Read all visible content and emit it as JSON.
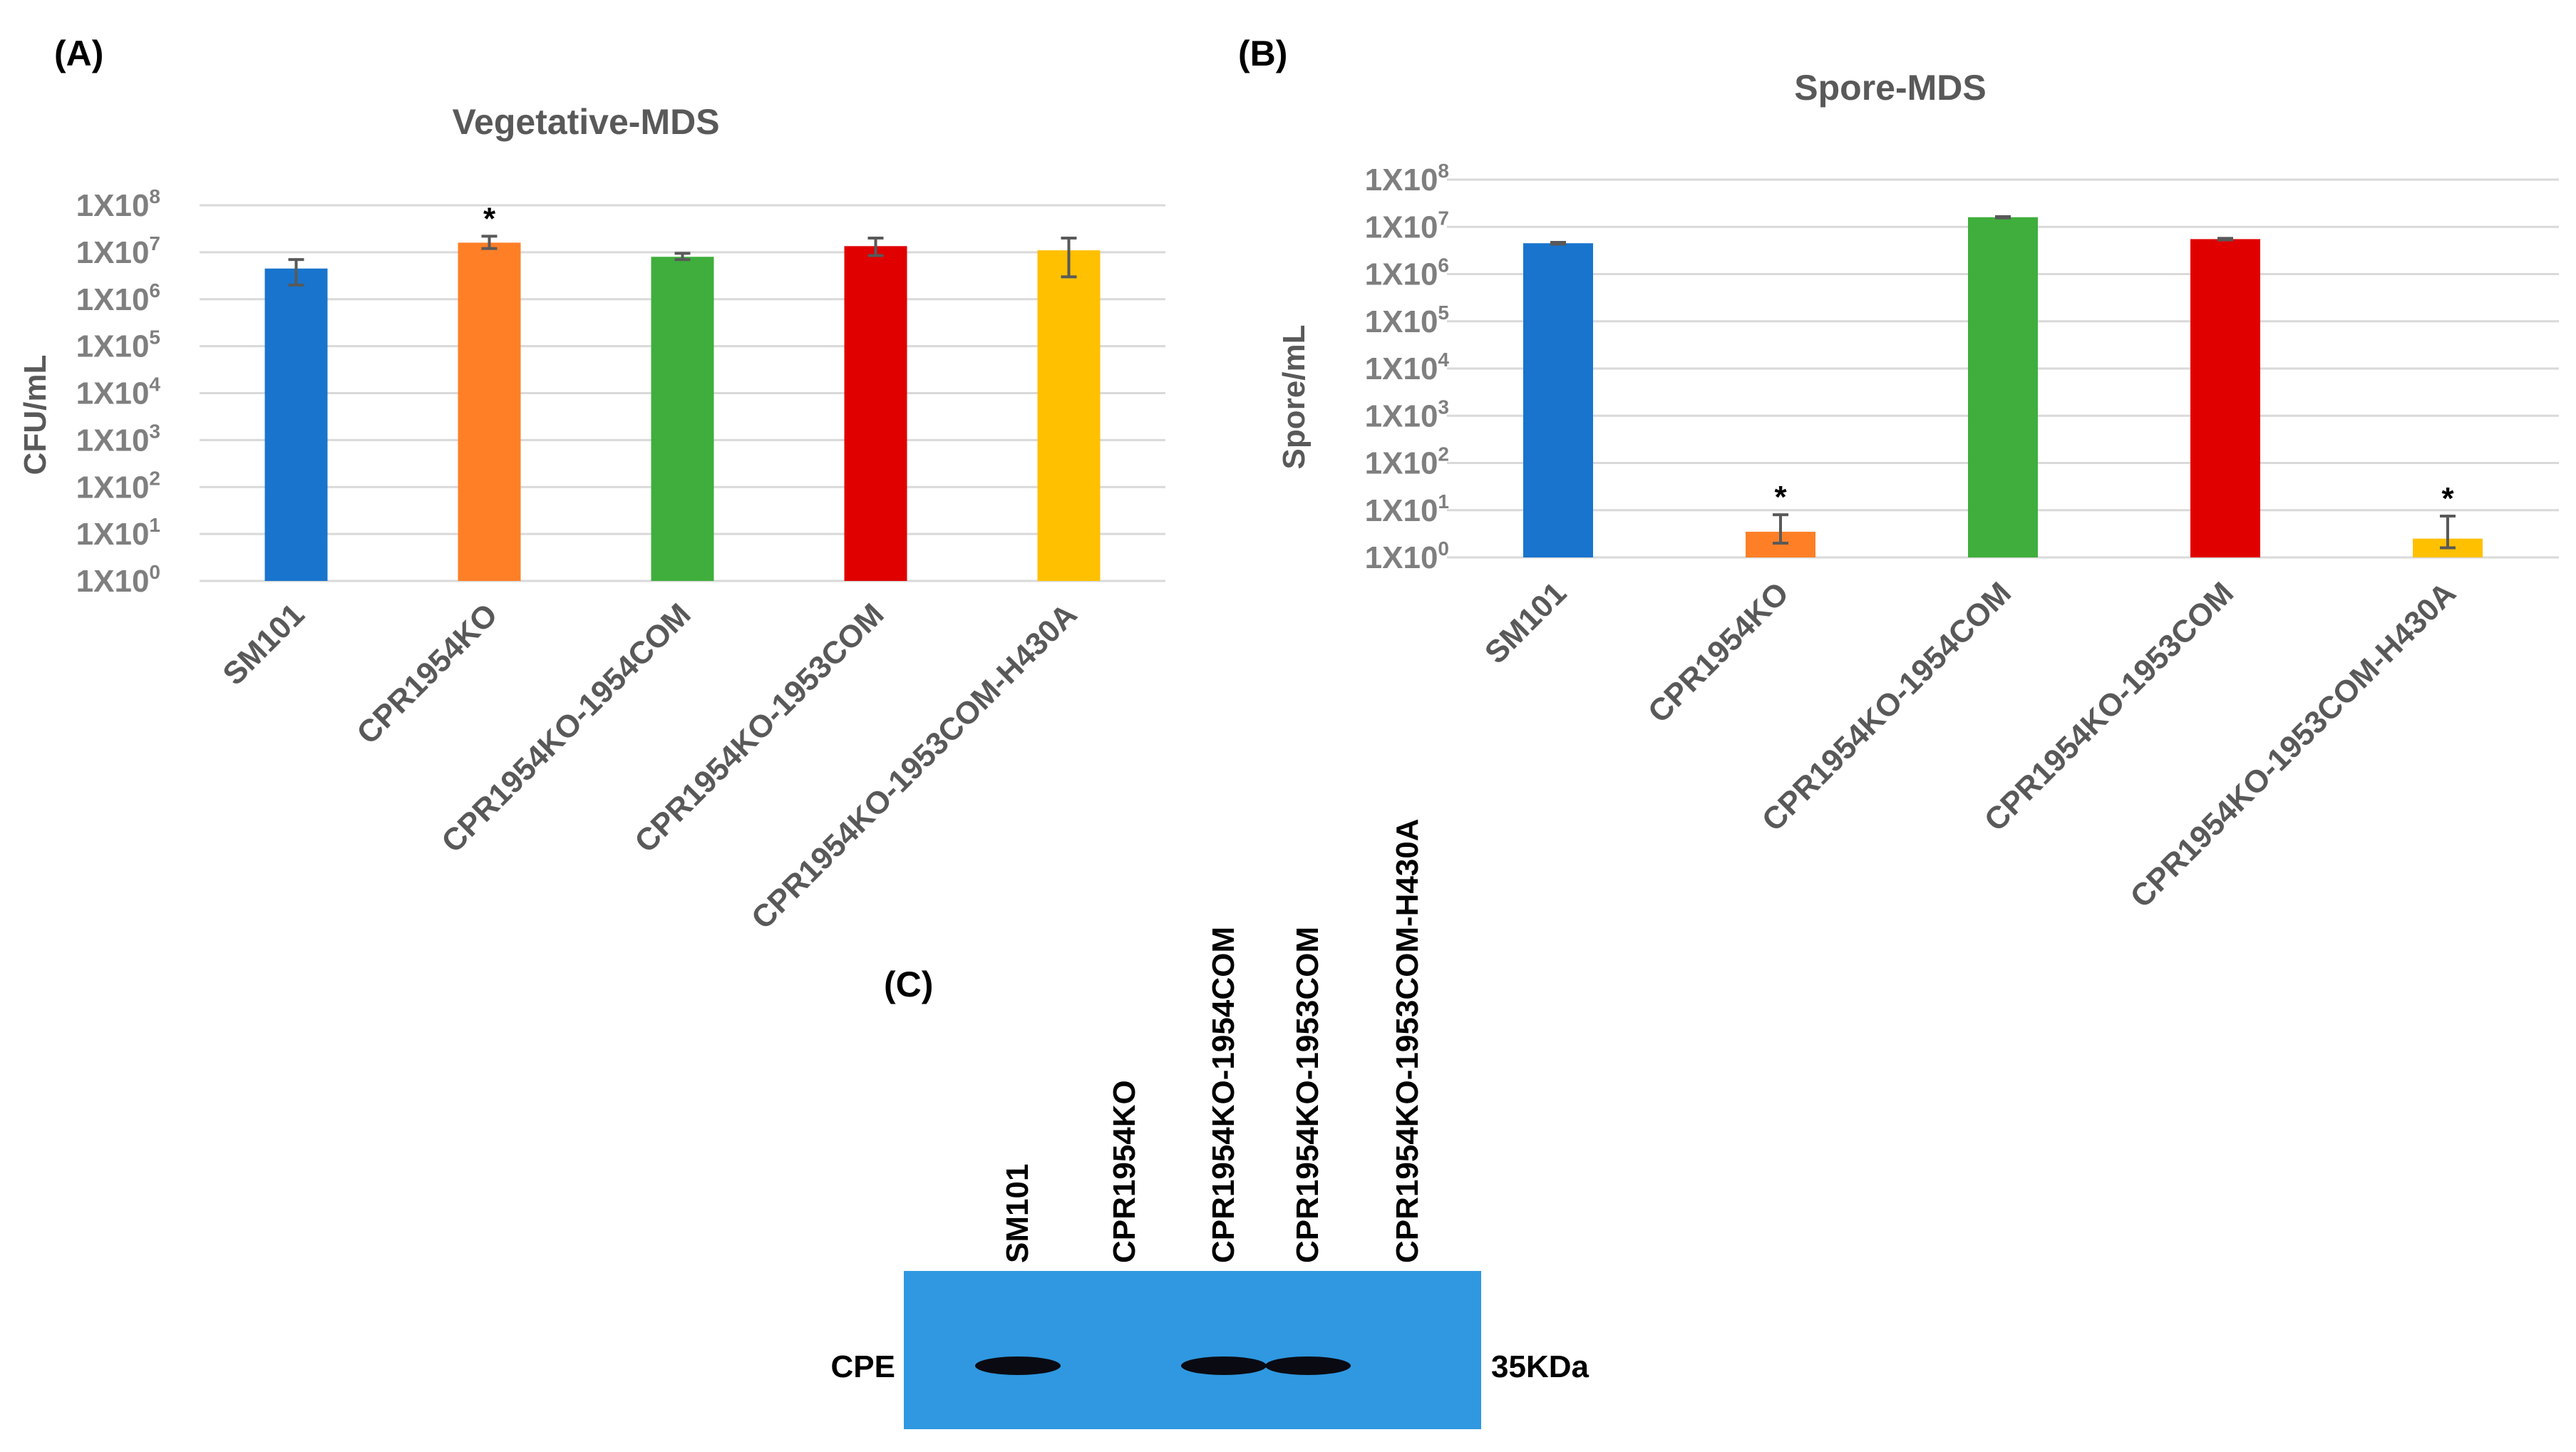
{
  "chart_data": [
    {
      "type": "bar",
      "panel_label": "(A)",
      "title": "Vegetative-MDS",
      "ylabel": "CFU/mL",
      "xlabel": "",
      "yscale": "log10",
      "ylim": [
        1,
        100000000
      ],
      "ytick_labels": [
        {
          "base": "1X10",
          "exp": "0"
        },
        {
          "base": "1X10",
          "exp": "1"
        },
        {
          "base": "1X10",
          "exp": "2"
        },
        {
          "base": "1X10",
          "exp": "3"
        },
        {
          "base": "1X10",
          "exp": "4"
        },
        {
          "base": "1X10",
          "exp": "5"
        },
        {
          "base": "1X10",
          "exp": "6"
        },
        {
          "base": "1X10",
          "exp": "7"
        },
        {
          "base": "1X10",
          "exp": "8"
        }
      ],
      "categories": [
        "SM101",
        "CPR1954KO",
        "CPR1954KO-1954COM",
        "CPR1954KO-1953COM",
        "CPR1954KO-1953COM-H430A"
      ],
      "values": [
        4500000,
        16000000,
        8000000,
        13500000,
        11000000
      ],
      "err_low": [
        2000000,
        12000000,
        7000000,
        8500000,
        3000000
      ],
      "err_high": [
        7000000,
        22000000,
        9500000,
        20000000,
        20000000
      ],
      "colors": [
        "#1874cd",
        "#ff7f27",
        "#3fae3c",
        "#e00000",
        "#ffc000"
      ],
      "annotations": [
        "",
        "*",
        "",
        "",
        ""
      ],
      "grid": true
    },
    {
      "type": "bar",
      "panel_label": "(B)",
      "title": "Spore-MDS",
      "ylabel": "Spore/mL",
      "xlabel": "",
      "yscale": "log10",
      "ylim": [
        1,
        100000000
      ],
      "ytick_labels": [
        {
          "base": "1X10",
          "exp": "0"
        },
        {
          "base": "1X10",
          "exp": "1"
        },
        {
          "base": "1X10",
          "exp": "2"
        },
        {
          "base": "1X10",
          "exp": "3"
        },
        {
          "base": "1X10",
          "exp": "4"
        },
        {
          "base": "1X10",
          "exp": "5"
        },
        {
          "base": "1X10",
          "exp": "6"
        },
        {
          "base": "1X10",
          "exp": "7"
        },
        {
          "base": "1X10",
          "exp": "8"
        }
      ],
      "categories": [
        "SM101",
        "CPR1954KO",
        "CPR1954KO-1954COM",
        "CPR1954KO-1953COM",
        "CPR1954KO-1953COM-H430A"
      ],
      "values": [
        4500000,
        3.5,
        16000000,
        5500000,
        2.5
      ],
      "err_low": [
        4300000,
        2,
        15500000,
        5300000,
        1.6
      ],
      "err_high": [
        4700000,
        8,
        16500000,
        5700000,
        7.5
      ],
      "colors": [
        "#1874cd",
        "#ff7f27",
        "#3fae3c",
        "#e00000",
        "#ffc000"
      ],
      "annotations": [
        "",
        "*",
        "",
        "",
        "*"
      ],
      "grid": true
    }
  ],
  "blot": {
    "panel_label": "(C)",
    "lanes": [
      "SM101",
      "CPR1954KO",
      "CPR1954KO-1954COM",
      "CPR1954KO-1953COM",
      "CPR1954KO-1953COM-H430A"
    ],
    "band_present": [
      true,
      false,
      true,
      true,
      false
    ],
    "left_label": "CPE",
    "right_label": "35KDa",
    "membrane_color": "#2f98e0",
    "band_color": "#0a0a12"
  }
}
